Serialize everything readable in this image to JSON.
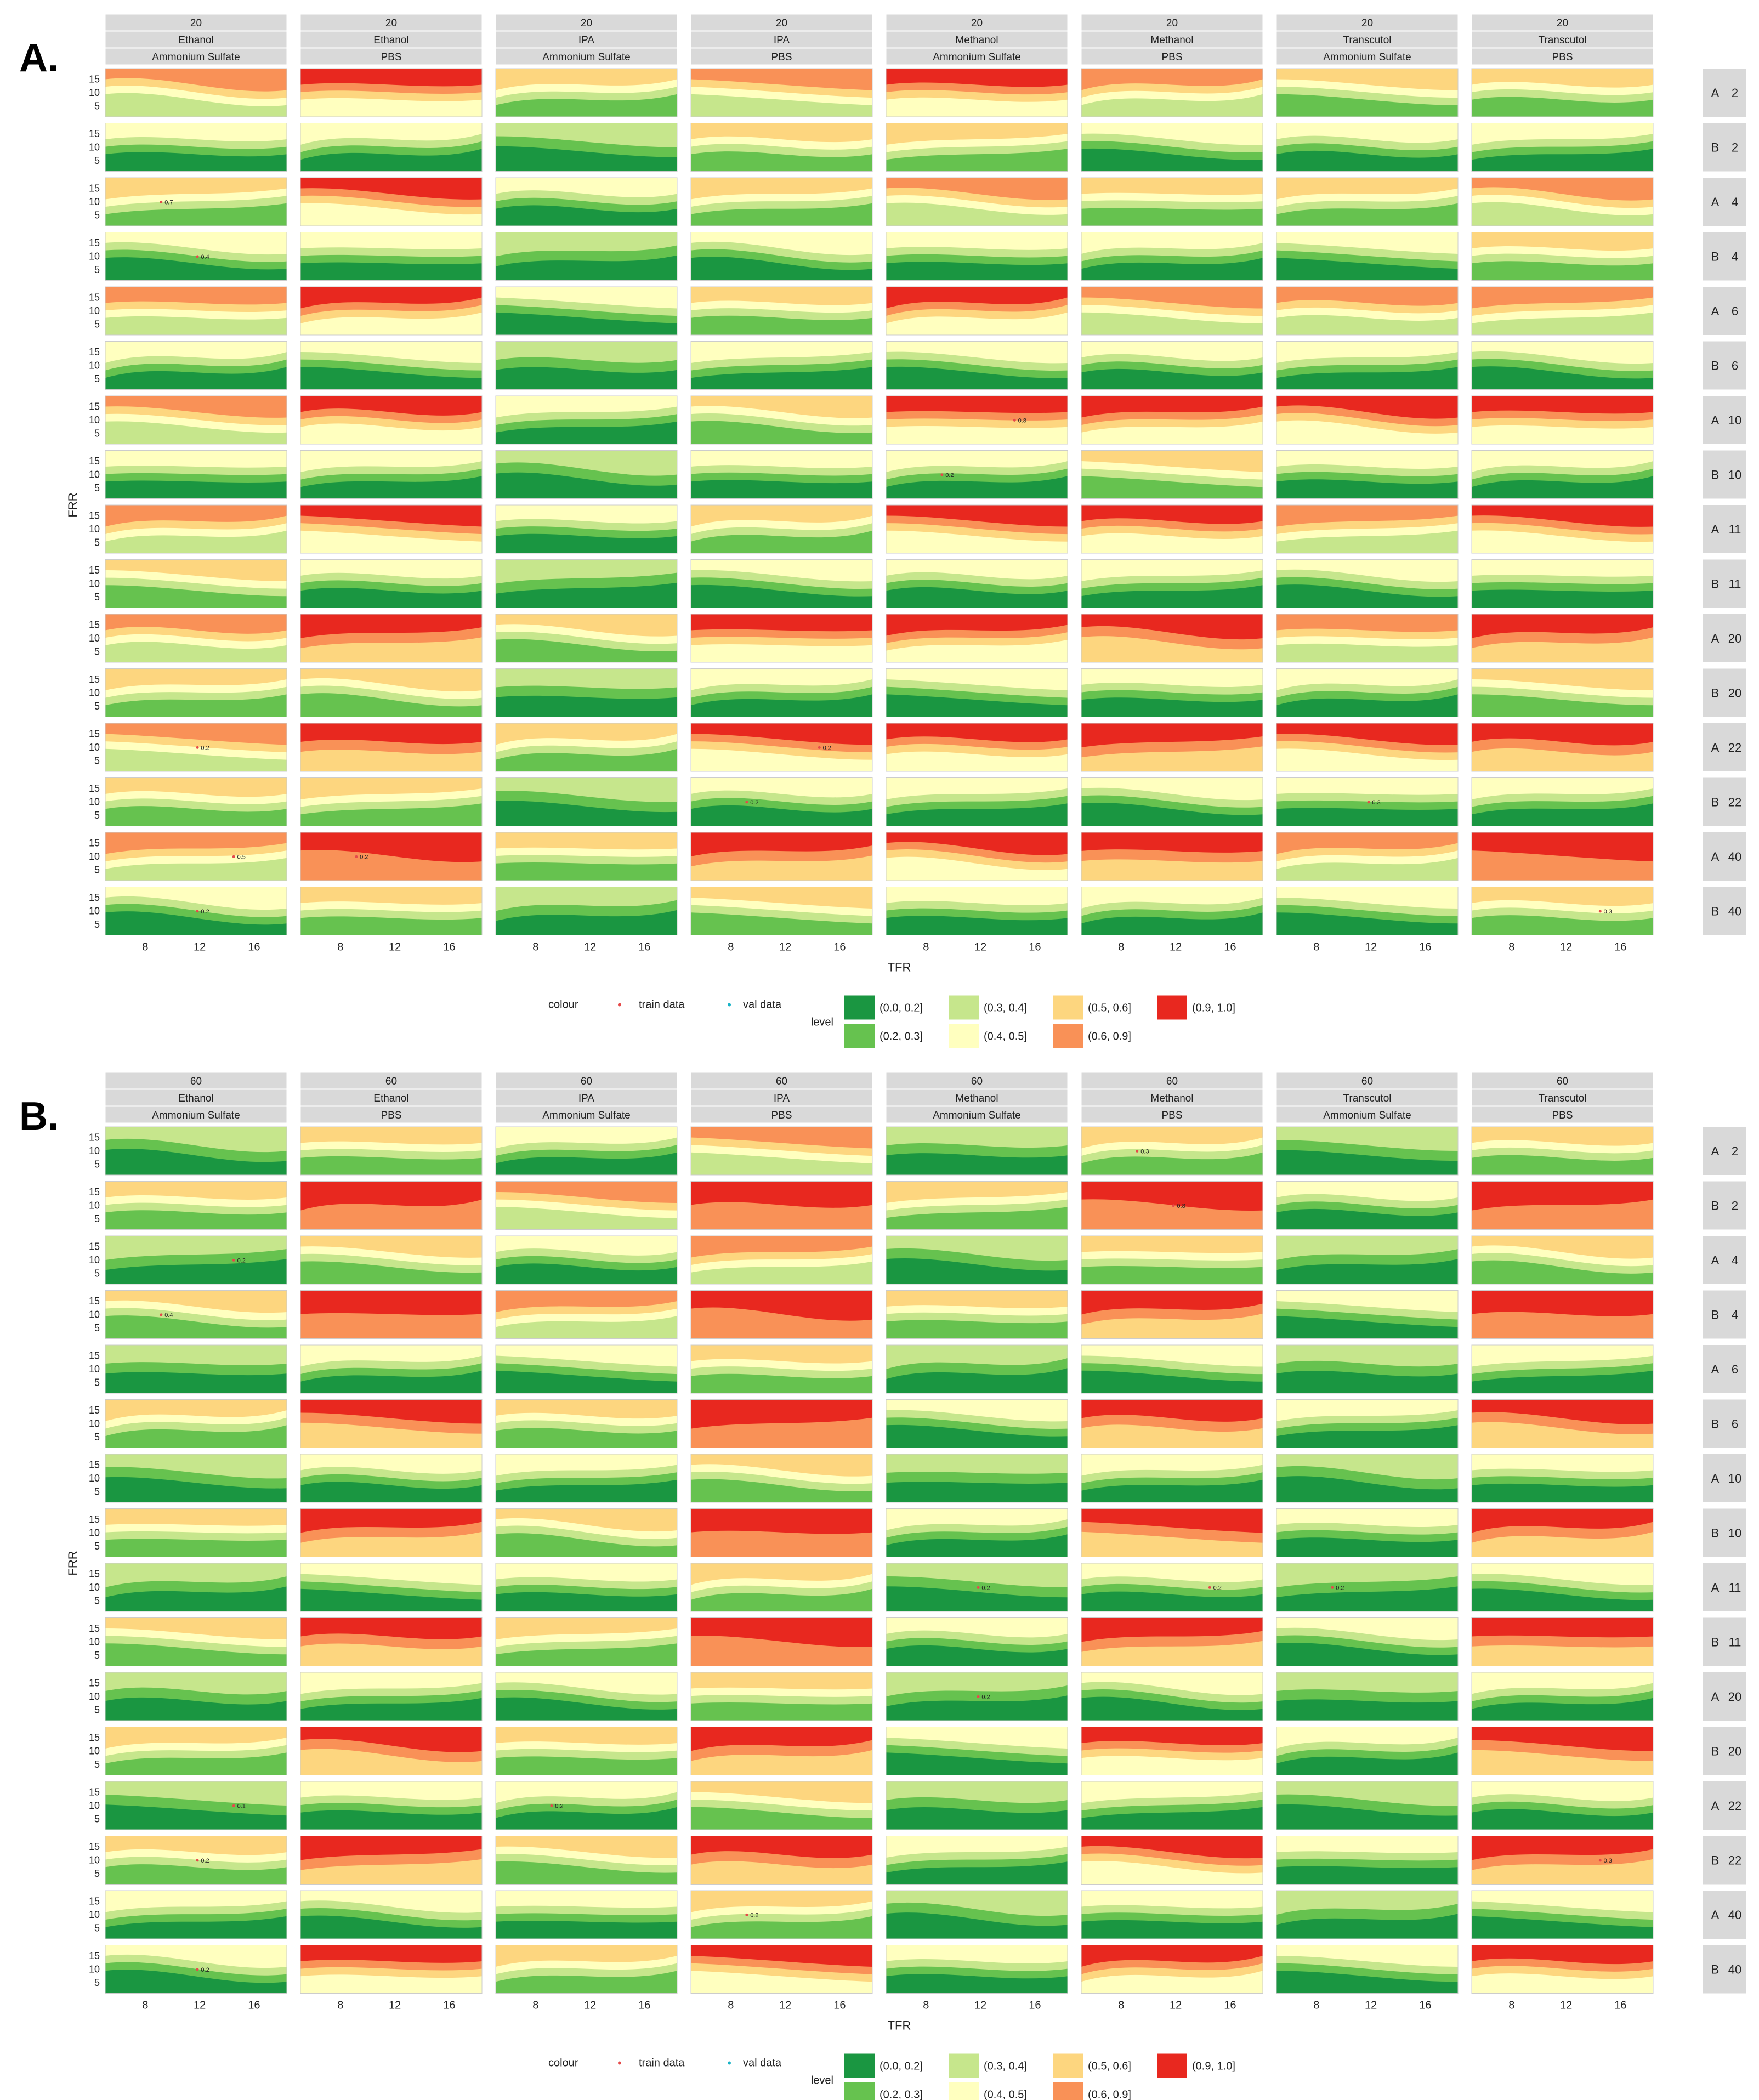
{
  "figure": {
    "panel_labels": [
      "A.",
      "B."
    ],
    "x_axis_title": "TFR",
    "y_axis_title": "FRR",
    "x_ticks": [
      "8",
      "12",
      "16"
    ],
    "y_ticks": [
      "15",
      "10",
      "5"
    ]
  },
  "legend": {
    "colour_title": "colour",
    "train_label": "train data",
    "val_label": "val data",
    "level_title": "level",
    "levels": [
      {
        "label": "(0.0, 0.2]",
        "color": "#1a9641"
      },
      {
        "label": "(0.2, 0.3]",
        "color": "#66c24f"
      },
      {
        "label": "(0.3, 0.4]",
        "color": "#c6e68c"
      },
      {
        "label": "(0.4, 0.5]",
        "color": "#ffffbf"
      },
      {
        "label": "(0.5, 0.6]",
        "color": "#fdd67f"
      },
      {
        "label": "(0.6, 0.9]",
        "color": "#f99157"
      },
      {
        "label": "(0.9, 1.0]",
        "color": "#e8281f"
      }
    ],
    "train_color": "#e64a4a",
    "val_color": "#17b3c7"
  },
  "chart_data": [
    {
      "type": "contour-facet",
      "panel": "A.",
      "xlabel": "TFR",
      "ylabel": "FRR",
      "xlim": [
        5,
        18
      ],
      "ylim": [
        1,
        18
      ],
      "columns": [
        {
          "top": "20",
          "solvent": "Ethanol",
          "buffer": "Ammonium Sulfate"
        },
        {
          "top": "20",
          "solvent": "Ethanol",
          "buffer": "PBS"
        },
        {
          "top": "20",
          "solvent": "IPA",
          "buffer": "Ammonium Sulfate"
        },
        {
          "top": "20",
          "solvent": "IPA",
          "buffer": "PBS"
        },
        {
          "top": "20",
          "solvent": "Methanol",
          "buffer": "Ammonium Sulfate"
        },
        {
          "top": "20",
          "solvent": "Methanol",
          "buffer": "PBS"
        },
        {
          "top": "20",
          "solvent": "Transcutol",
          "buffer": "Ammonium Sulfate"
        },
        {
          "top": "20",
          "solvent": "Transcutol",
          "buffer": "PBS"
        }
      ],
      "rows": [
        {
          "group": "A",
          "value": "2"
        },
        {
          "group": "B",
          "value": "2"
        },
        {
          "group": "A",
          "value": "4"
        },
        {
          "group": "B",
          "value": "4"
        },
        {
          "group": "A",
          "value": "6"
        },
        {
          "group": "B",
          "value": "6"
        },
        {
          "group": "A",
          "value": "10"
        },
        {
          "group": "B",
          "value": "10"
        },
        {
          "group": "A",
          "value": "11"
        },
        {
          "group": "B",
          "value": "11"
        },
        {
          "group": "A",
          "value": "20"
        },
        {
          "group": "B",
          "value": "20"
        },
        {
          "group": "A",
          "value": "22"
        },
        {
          "group": "B",
          "value": "22"
        },
        {
          "group": "A",
          "value": "40"
        },
        {
          "group": "B",
          "value": "40"
        }
      ],
      "grid": [
        [
          3,
          4,
          2,
          3,
          4,
          3,
          2,
          2
        ],
        [
          1,
          1,
          0,
          2,
          2,
          1,
          1,
          1
        ],
        [
          2,
          4,
          1,
          2,
          3,
          2,
          2,
          3
        ],
        [
          1,
          1,
          0,
          1,
          1,
          1,
          1,
          2
        ],
        [
          3,
          4,
          1,
          2,
          4,
          3,
          3,
          3
        ],
        [
          1,
          1,
          0,
          1,
          1,
          1,
          1,
          1
        ],
        [
          3,
          4,
          1,
          2,
          4,
          4,
          4,
          4
        ],
        [
          1,
          1,
          0,
          1,
          1,
          2,
          1,
          1
        ],
        [
          3,
          4,
          1,
          2,
          4,
          4,
          3,
          4
        ],
        [
          2,
          1,
          0,
          1,
          1,
          1,
          1,
          1
        ],
        [
          3,
          5,
          2,
          4,
          4,
          5,
          3,
          5
        ],
        [
          2,
          2,
          0,
          1,
          1,
          1,
          1,
          2
        ],
        [
          3,
          5,
          2,
          4,
          4,
          5,
          4,
          5
        ],
        [
          2,
          2,
          0,
          1,
          1,
          1,
          1,
          1
        ],
        [
          3,
          6,
          2,
          5,
          4,
          5,
          3,
          6
        ],
        [
          1,
          2,
          0,
          2,
          1,
          1,
          1,
          2
        ]
      ],
      "point_labels": [
        {
          "row": 2,
          "col": 0,
          "text": "0.7"
        },
        {
          "row": 3,
          "col": 0,
          "text": "0.4"
        },
        {
          "row": 6,
          "col": 4,
          "text": "0.8"
        },
        {
          "row": 7,
          "col": 4,
          "text": "0.2"
        },
        {
          "row": 12,
          "col": 0,
          "text": "0.2"
        },
        {
          "row": 12,
          "col": 3,
          "text": "0.2"
        },
        {
          "row": 13,
          "col": 3,
          "text": "0.2"
        },
        {
          "row": 13,
          "col": 6,
          "text": "0.3"
        },
        {
          "row": 14,
          "col": 0,
          "text": "0.5"
        },
        {
          "row": 14,
          "col": 1,
          "text": "0.2"
        },
        {
          "row": 15,
          "col": 0,
          "text": "0.2"
        },
        {
          "row": 15,
          "col": 7,
          "text": "0.3"
        }
      ]
    },
    {
      "type": "contour-facet",
      "panel": "B.",
      "xlabel": "TFR",
      "ylabel": "FRR",
      "xlim": [
        5,
        18
      ],
      "ylim": [
        1,
        18
      ],
      "columns": [
        {
          "top": "60",
          "solvent": "Ethanol",
          "buffer": "Ammonium Sulfate"
        },
        {
          "top": "60",
          "solvent": "Ethanol",
          "buffer": "PBS"
        },
        {
          "top": "60",
          "solvent": "IPA",
          "buffer": "Ammonium Sulfate"
        },
        {
          "top": "60",
          "solvent": "IPA",
          "buffer": "PBS"
        },
        {
          "top": "60",
          "solvent": "Methanol",
          "buffer": "Ammonium Sulfate"
        },
        {
          "top": "60",
          "solvent": "Methanol",
          "buffer": "PBS"
        },
        {
          "top": "60",
          "solvent": "Transcutol",
          "buffer": "Ammonium Sulfate"
        },
        {
          "top": "60",
          "solvent": "Transcutol",
          "buffer": "PBS"
        }
      ],
      "rows": [
        {
          "group": "A",
          "value": "2"
        },
        {
          "group": "B",
          "value": "2"
        },
        {
          "group": "A",
          "value": "4"
        },
        {
          "group": "B",
          "value": "4"
        },
        {
          "group": "A",
          "value": "6"
        },
        {
          "group": "B",
          "value": "6"
        },
        {
          "group": "A",
          "value": "10"
        },
        {
          "group": "B",
          "value": "10"
        },
        {
          "group": "A",
          "value": "11"
        },
        {
          "group": "B",
          "value": "11"
        },
        {
          "group": "A",
          "value": "20"
        },
        {
          "group": "B",
          "value": "20"
        },
        {
          "group": "A",
          "value": "22"
        },
        {
          "group": "B",
          "value": "22"
        },
        {
          "group": "A",
          "value": "40"
        },
        {
          "group": "B",
          "value": "40"
        }
      ],
      "grid": [
        [
          0,
          2,
          1,
          3,
          0,
          2,
          0,
          2
        ],
        [
          2,
          6,
          3,
          6,
          2,
          6,
          1,
          6
        ],
        [
          0,
          2,
          1,
          3,
          0,
          2,
          0,
          2
        ],
        [
          2,
          6,
          3,
          6,
          2,
          5,
          1,
          6
        ],
        [
          0,
          1,
          1,
          2,
          0,
          1,
          0,
          1
        ],
        [
          2,
          5,
          2,
          6,
          1,
          5,
          1,
          5
        ],
        [
          0,
          1,
          1,
          2,
          0,
          1,
          0,
          1
        ],
        [
          2,
          5,
          2,
          6,
          1,
          5,
          1,
          5
        ],
        [
          0,
          1,
          1,
          2,
          0,
          1,
          0,
          1
        ],
        [
          2,
          5,
          2,
          6,
          1,
          5,
          1,
          5
        ],
        [
          0,
          1,
          1,
          2,
          0,
          1,
          0,
          1
        ],
        [
          2,
          5,
          2,
          5,
          1,
          4,
          1,
          5
        ],
        [
          0,
          1,
          1,
          2,
          0,
          1,
          0,
          1
        ],
        [
          2,
          5,
          2,
          5,
          1,
          4,
          1,
          5
        ],
        [
          1,
          1,
          1,
          2,
          0,
          1,
          0,
          1
        ],
        [
          1,
          4,
          2,
          4,
          1,
          4,
          1,
          4
        ]
      ],
      "point_labels": [
        {
          "row": 0,
          "col": 5,
          "text": "0.3"
        },
        {
          "row": 1,
          "col": 5,
          "text": "0.8"
        },
        {
          "row": 2,
          "col": 0,
          "text": "0.2"
        },
        {
          "row": 3,
          "col": 0,
          "text": "0.4"
        },
        {
          "row": 8,
          "col": 4,
          "text": "0.2"
        },
        {
          "row": 8,
          "col": 5,
          "text": "0.2"
        },
        {
          "row": 8,
          "col": 6,
          "text": "0.2"
        },
        {
          "row": 10,
          "col": 4,
          "text": "0.2"
        },
        {
          "row": 12,
          "col": 0,
          "text": "0.1"
        },
        {
          "row": 12,
          "col": 2,
          "text": "0.2"
        },
        {
          "row": 13,
          "col": 0,
          "text": "0.2"
        },
        {
          "row": 13,
          "col": 7,
          "text": "0.3"
        },
        {
          "row": 14,
          "col": 3,
          "text": "0.2"
        },
        {
          "row": 15,
          "col": 0,
          "text": "0.2"
        }
      ]
    }
  ]
}
